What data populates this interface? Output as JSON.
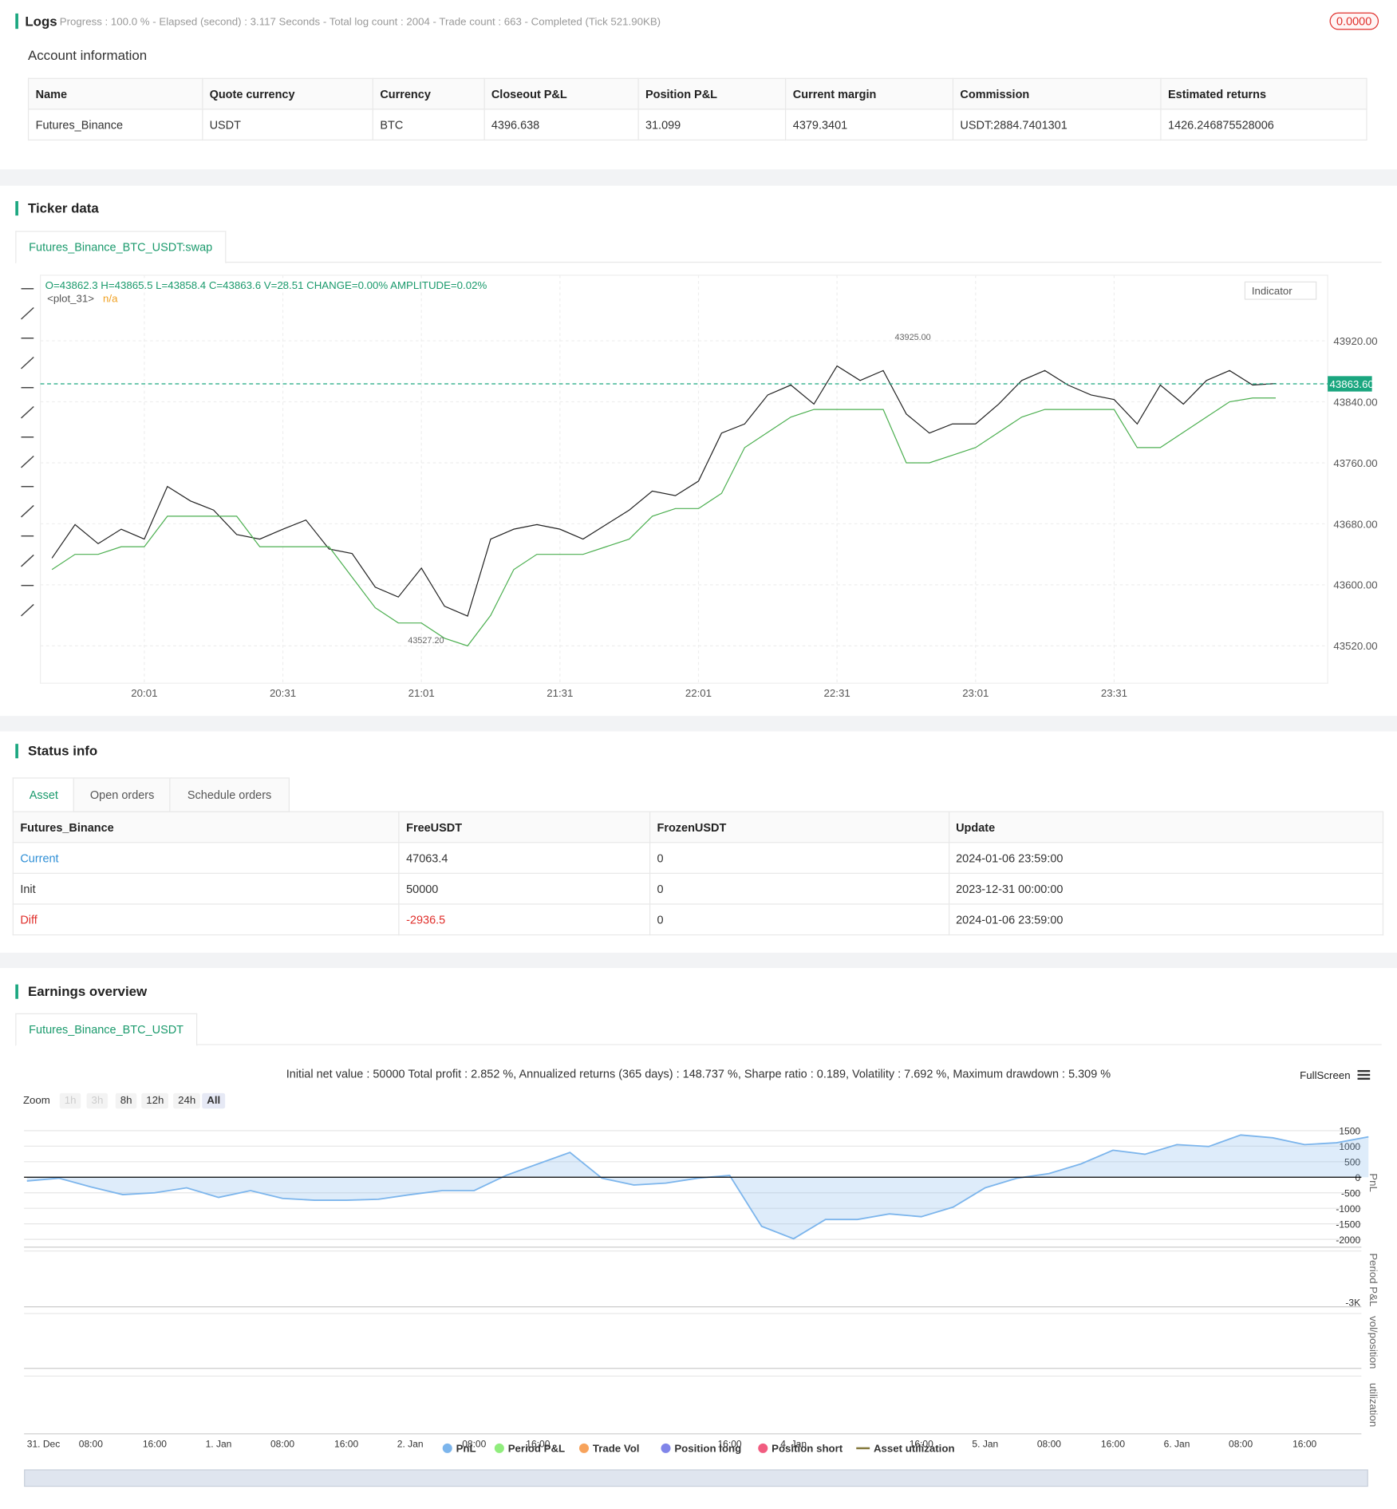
{
  "logs": {
    "title": "Logs",
    "progress": "Progress : 100.0 % - Elapsed (second) : 3.117  Seconds - Total log count : 2004 - Trade count : 663 - Completed (Tick 521.90KB)",
    "badge": "0.0000"
  },
  "account": {
    "title": "Account information",
    "table": {
      "header": [
        "Name",
        "Quote currency",
        "Currency",
        "Closeout P&L",
        "Position P&L",
        "Current margin",
        "Commission",
        "Estimated returns"
      ],
      "rows": [
        [
          "Futures_Binance",
          "USDT",
          "BTC",
          "4396.638",
          "31.099",
          "4379.3401",
          "USDT:2884.7401301",
          "1426.246875528006"
        ]
      ]
    }
  },
  "ticker": {
    "title": "Ticker data",
    "tab": "Futures_Binance_BTC_USDT:swap",
    "ohlc": "O=43862.3 H=43865.5 L=43858.4 C=43863.6 V=28.51 CHANGE=0.00% AMPLITUDE=0.02%",
    "plot_name": "<plot_31>",
    "plot_value": "n/a",
    "indicator_button": "Indicator"
  },
  "status": {
    "title": "Status info",
    "tabs": [
      "Asset",
      "Open orders",
      "Schedule orders"
    ],
    "table": {
      "header": [
        "Futures_Binance",
        "FreeUSDT",
        "FrozenUSDT",
        "Update"
      ],
      "rows": [
        [
          "Current",
          "47063.4",
          "0",
          "2024-01-06 23:59:00"
        ],
        [
          "Init",
          "50000",
          "0",
          "2023-12-31 00:00:00"
        ],
        [
          "Diff",
          "-2936.5",
          "0",
          "2024-01-06 23:59:00"
        ]
      ]
    }
  },
  "earnings": {
    "title": "Earnings overview",
    "tab": "Futures_Binance_BTC_USDT",
    "summary": "Initial net value : 50000 Total profit : 2.852 %, Annualized returns (365 days) : 148.737 %, Sharpe ratio : 0.189, Volatility : 7.692 %, Maximum drawdown : 5.309 %",
    "fullscreen": "FullScreen",
    "zoom_label": "Zoom",
    "zoom_buttons": [
      "1h",
      "3h",
      "8h",
      "12h",
      "24h",
      "All"
    ],
    "panel_labels": [
      "PnL",
      "Period P&L",
      "vol/position",
      "utilization"
    ],
    "period_min_label": "-3K",
    "legend": [
      {
        "name": "PnL",
        "color": "#7cb5ec"
      },
      {
        "name": "Period P&L",
        "color": "#90ed7d"
      },
      {
        "name": "Trade Vol",
        "color": "#f7a35c"
      },
      {
        "name": "Position long",
        "color": "#8085e9"
      },
      {
        "name": "Position short",
        "color": "#f15c80"
      },
      {
        "name": "Asset utilization",
        "color": "#857a3e"
      }
    ]
  },
  "chart_data": [
    {
      "type": "line",
      "categories": [
        null,
        null,
        null,
        null,
        "20:01",
        null,
        null,
        null,
        null,
        null,
        "20:31",
        null,
        null,
        null,
        null,
        null,
        "21:01",
        null,
        null,
        null,
        null,
        null,
        "21:31",
        null,
        null,
        null,
        null,
        null,
        "22:01",
        null,
        null,
        null,
        null,
        null,
        "22:31",
        null,
        null,
        null,
        null,
        null,
        "23:01",
        null,
        null,
        null,
        null,
        null,
        "23:31",
        null,
        null,
        null,
        null,
        null,
        null,
        null
      ],
      "series": [
        {
          "color": "#222222",
          "values": [
            43635,
            43679,
            43654,
            43673,
            43660,
            43729,
            43710,
            43698,
            43666,
            43660,
            43673,
            43685,
            43647,
            43641,
            43597,
            43584,
            43622,
            43572,
            43559,
            43660,
            43673,
            43679,
            43673,
            43660,
            43679,
            43698,
            43723,
            43717,
            43736,
            43799,
            43811,
            43849,
            43862,
            43837,
            43887,
            43868,
            43881,
            43824,
            43799,
            43811,
            43811,
            43837,
            43868,
            43881,
            43862,
            43849,
            43843,
            43811,
            43862,
            43837,
            43868,
            43881,
            43862,
            43864
          ]
        },
        {
          "color": "#4caf50",
          "values": [
            43620,
            43640,
            43640,
            43650,
            43650,
            43690,
            43690,
            43690,
            43690,
            43650,
            43650,
            43650,
            43650,
            43610,
            43570,
            43550,
            43550,
            43530,
            43520,
            43560,
            43620,
            43640,
            43640,
            43640,
            43650,
            43660,
            43690,
            43700,
            43700,
            43720,
            43780,
            43800,
            43820,
            43830,
            43830,
            43830,
            43830,
            43760,
            43760,
            43770,
            43780,
            43800,
            43820,
            43830,
            43830,
            43830,
            43830,
            43780,
            43780,
            43800,
            43820,
            43840,
            43845,
            43845
          ]
        }
      ],
      "ylim": [
        43471,
        44006
      ],
      "yticks": [
        {
          "value": 43520,
          "label": "43520.00"
        },
        {
          "value": 43600,
          "label": "43600.00"
        },
        {
          "value": 43680,
          "label": "43680.00"
        },
        {
          "value": 43760,
          "label": "43760.00"
        },
        {
          "value": 43840,
          "label": "43840.00"
        },
        {
          "value": 43920,
          "label": "43920.00"
        }
      ],
      "grid": true,
      "last_price": {
        "value": 43863.6,
        "label": "43863.60"
      },
      "annotations": [
        {
          "value": 43925,
          "label": "43925.00"
        },
        {
          "value": 43527.2,
          "label": "43527.20"
        }
      ]
    },
    {
      "type": "area",
      "categories": [
        "31. Dec",
        null,
        "08:00",
        null,
        "16:00",
        null,
        "1. Jan",
        null,
        "08:00",
        null,
        "16:00",
        null,
        "2. Jan",
        null,
        "08:00",
        null,
        "16:00",
        null,
        null,
        null,
        null,
        null,
        "16:00",
        null,
        "4. Jan",
        null,
        null,
        null,
        "16:00",
        null,
        "5. Jan",
        null,
        "08:00",
        null,
        "16:00",
        null,
        "6. Jan",
        null,
        "08:00",
        null,
        "16:00",
        null,
        null
      ],
      "series": [
        {
          "color": "#7cb5ec",
          "values": [
            -120,
            -30,
            -310,
            -560,
            -500,
            -340,
            -650,
            -430,
            -680,
            -740,
            -740,
            -710,
            -560,
            -430,
            -430,
            60,
            430,
            800,
            -30,
            -250,
            -190,
            -30,
            60,
            -1580,
            -1980,
            -1360,
            -1360,
            -1180,
            -1270,
            -960,
            -340,
            -30,
            120,
            430,
            870,
            740,
            1050,
            990,
            1360,
            1270,
            1050,
            1110,
            1300
          ]
        }
      ],
      "ylim": [
        -2250,
        1870
      ],
      "yticks": [
        1500,
        1000,
        500,
        0,
        -500,
        -1000,
        -1500,
        -2000
      ],
      "grid": true
    }
  ]
}
